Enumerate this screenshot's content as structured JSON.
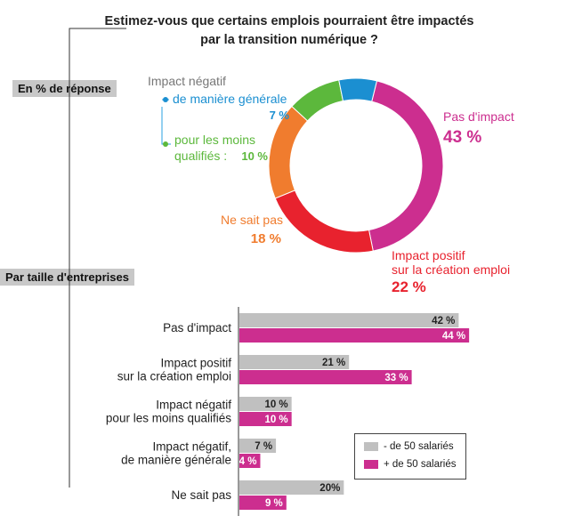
{
  "title": "Estimez-vous que certains emplois pourraient être impactés par la transition numérique ?",
  "sections": {
    "percent_label": "En % de réponse",
    "size_label": "Par taille d'entreprises"
  },
  "colors": {
    "pas_impact": "#cc2e8f",
    "impact_positif": "#e8222e",
    "ne_sait_pas": "#f07c2e",
    "qualifies": "#5cb83c",
    "generale": "#1b8fd1",
    "grey_bar": "#c0c0c0",
    "pink_bar": "#cc2e8f"
  },
  "chart_data": [
    {
      "type": "pie",
      "subtype": "donut",
      "slices": [
        {
          "key": "pas_impact",
          "label": "Pas d'impact",
          "value": 43,
          "display": "43 %"
        },
        {
          "key": "impact_positif",
          "label": "Impact positif sur la création emploi",
          "value": 22,
          "display": "22 %"
        },
        {
          "key": "ne_sait_pas",
          "label": "Ne sait pas",
          "value": 18,
          "display": "18 %"
        },
        {
          "key": "qualifies",
          "label": "pour les moins qualifiés :",
          "value": 10,
          "display": "10 %"
        },
        {
          "key": "generale",
          "label": "de manière générale",
          "value": 7,
          "display": "7 %"
        }
      ],
      "annotations": {
        "impact_negatif_header": "Impact négatif"
      }
    },
    {
      "type": "bar",
      "orientation": "horizontal",
      "categories": [
        [
          "Pas d'impact"
        ],
        [
          "Impact positif",
          "sur la création emploi"
        ],
        [
          "Impact négatif",
          "pour les moins qualifiés"
        ],
        [
          "Impact négatif,",
          "de manière générale"
        ],
        [
          "Ne sait pas"
        ]
      ],
      "series": [
        {
          "name": "- de 50 salariés",
          "color": "#c0c0c0",
          "values": [
            42,
            21,
            10,
            7,
            20
          ],
          "labels": [
            "42 %",
            "21 %",
            "10 %",
            "7 %",
            "20%"
          ]
        },
        {
          "name": "+ de 50 salariés",
          "color": "#cc2e8f",
          "values": [
            44,
            33,
            10,
            4,
            9
          ],
          "labels": [
            "44 %",
            "33 %",
            "10 %",
            "4 %",
            "9 %"
          ]
        }
      ],
      "xlim": [
        0,
        45
      ]
    }
  ]
}
